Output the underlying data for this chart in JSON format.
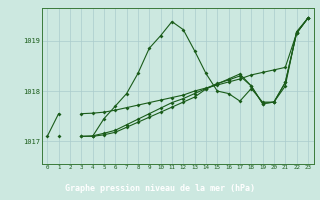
{
  "title": "",
  "xlabel": "Graphe pression niveau de la mer (hPa)",
  "background_color": "#cce8e0",
  "grid_color": "#aacccc",
  "line_color": "#1a5c1a",
  "label_bg_color": "#2d6e2d",
  "label_text_color": "#ffffff",
  "xlim": [
    -0.5,
    23.5
  ],
  "ylim": [
    1016.55,
    1019.65
  ],
  "yticks": [
    1017,
    1018,
    1019
  ],
  "xticks": [
    0,
    1,
    2,
    3,
    4,
    5,
    6,
    7,
    8,
    9,
    10,
    11,
    12,
    13,
    14,
    15,
    16,
    17,
    18,
    19,
    20,
    21,
    22,
    23
  ],
  "s1": [
    1017.1,
    1017.55,
    null,
    1017.1,
    1017.1,
    1017.45,
    1017.7,
    1017.95,
    1018.35,
    1018.85,
    1019.1,
    1019.38,
    1019.22,
    1018.8,
    1018.35,
    1018.0,
    1017.95,
    1017.8,
    1018.05,
    1017.78,
    1017.78,
    1018.1,
    1019.18,
    1019.45
  ],
  "s2": [
    null,
    1017.1,
    null,
    1017.55,
    1017.56,
    1017.58,
    1017.62,
    1017.67,
    1017.72,
    1017.77,
    1017.82,
    1017.87,
    1017.92,
    1018.0,
    1018.06,
    1018.12,
    1018.18,
    1018.24,
    1018.32,
    1018.37,
    1018.42,
    1018.47,
    1019.15,
    1019.45
  ],
  "s3": [
    null,
    null,
    null,
    1017.1,
    1017.11,
    1017.16,
    1017.22,
    1017.33,
    1017.44,
    1017.55,
    1017.66,
    1017.77,
    1017.85,
    1017.95,
    1018.05,
    1018.15,
    1018.22,
    1018.3,
    1018.1,
    1017.75,
    1017.78,
    1018.17,
    1019.15,
    1019.45
  ],
  "s4": [
    null,
    null,
    null,
    null,
    1017.1,
    1017.13,
    1017.18,
    1017.28,
    1017.38,
    1017.48,
    1017.58,
    1017.68,
    1017.78,
    1017.88,
    1018.04,
    1018.14,
    1018.24,
    1018.34,
    1018.1,
    1017.75,
    1017.78,
    1018.17,
    1019.15,
    1019.45
  ]
}
